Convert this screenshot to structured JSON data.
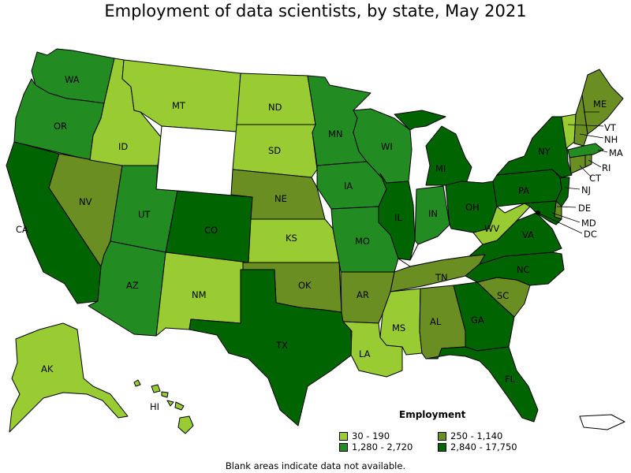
{
  "title": "Employment of data scientists, by state, May 2021",
  "legend": {
    "title": "Employment",
    "bins": [
      {
        "label": "30 - 190",
        "color": "#99cc33"
      },
      {
        "label": "250 - 1,140",
        "color": "#6b8e23"
      },
      {
        "label": "1,280 - 2,720",
        "color": "#228b22"
      },
      {
        "label": "2,840 - 17,750",
        "color": "#006400"
      }
    ]
  },
  "no_data_color": "#ffffff",
  "footnote": "Blank areas indicate data not available.",
  "states": {
    "WA": 2,
    "OR": 2,
    "CA": 3,
    "NV": 1,
    "ID": 0,
    "MT": 0,
    "WY": null,
    "UT": 2,
    "AZ": 2,
    "CO": 3,
    "NM": 0,
    "ND": 0,
    "SD": 0,
    "NE": 1,
    "KS": 0,
    "OK": 1,
    "TX": 3,
    "MN": 2,
    "IA": 2,
    "MO": 2,
    "AR": 1,
    "LA": 0,
    "WI": 2,
    "IL": 3,
    "MI": 3,
    "IN": 2,
    "OH": 3,
    "KY": null,
    "TN": 1,
    "MS": 0,
    "AL": 1,
    "GA": 3,
    "FL": 3,
    "SC": 1,
    "NC": 3,
    "VA": 3,
    "WV": 0,
    "PA": 3,
    "NY": 3,
    "NJ": 3,
    "DE": 1,
    "MD": 3,
    "DC": 3,
    "CT": 1,
    "RI": 1,
    "MA": 2,
    "VT": 0,
    "NH": 1,
    "ME": 1,
    "AK": 0,
    "HI": 0,
    "PR": null
  }
}
